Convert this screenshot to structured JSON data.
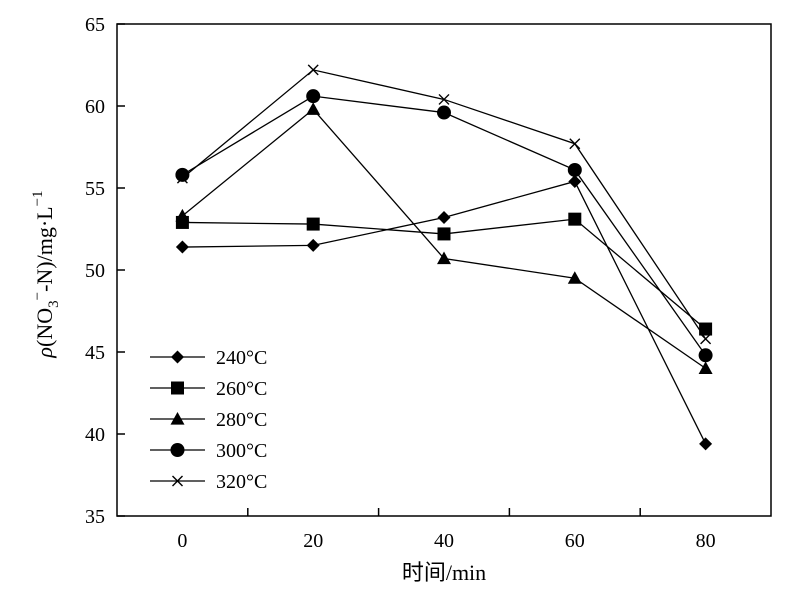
{
  "chart_data": {
    "type": "line",
    "title": "",
    "xlabel": "时间/min",
    "ylabel_parts": {
      "rho": "ρ",
      "prefix": "(NO",
      "sub": "3",
      "sup1": "−",
      "mid": "-N)/mg·L",
      "sup2": "−1"
    },
    "x": [
      0,
      20,
      40,
      60,
      80
    ],
    "xlim": [
      -10,
      90
    ],
    "ylim": [
      35,
      65
    ],
    "xticks": [
      "0",
      "20",
      "40",
      "60",
      "80"
    ],
    "yticks": [
      "35",
      "40",
      "45",
      "50",
      "55",
      "60",
      "65"
    ],
    "ytick_values": [
      35,
      40,
      45,
      50,
      55,
      60,
      65
    ],
    "xtick_values": [
      0,
      20,
      40,
      60,
      80
    ],
    "x_minor_ticks": [
      10,
      30,
      50,
      70
    ],
    "legend_position": "bottom-left",
    "series": [
      {
        "name": "240°C",
        "marker": "diamond",
        "values": [
          51.4,
          51.5,
          53.2,
          55.4,
          39.4
        ]
      },
      {
        "name": "260°C",
        "marker": "square",
        "values": [
          52.9,
          52.8,
          52.2,
          53.1,
          46.4
        ]
      },
      {
        "name": "280°C",
        "marker": "triangle",
        "values": [
          53.3,
          59.8,
          50.7,
          49.5,
          44.0
        ]
      },
      {
        "name": "300°C",
        "marker": "circle",
        "values": [
          55.8,
          60.6,
          59.6,
          56.1,
          44.8
        ]
      },
      {
        "name": "320°C",
        "marker": "cross",
        "values": [
          55.6,
          62.2,
          60.4,
          57.7,
          45.8
        ]
      }
    ]
  }
}
